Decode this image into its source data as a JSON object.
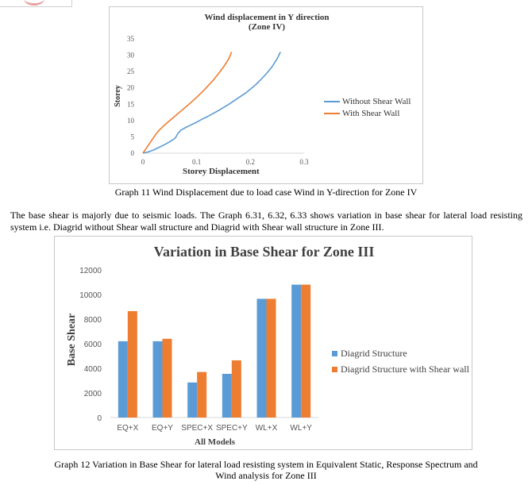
{
  "doc": {
    "caption1": "Graph 11 Wind Displacement due to load case Wind in Y-direction for Zone IV",
    "paragraph": "The base shear is majorly due to seismic loads. The Graph 6.31, 6.32, 6.33 shows variation in base shear for lateral load resisting system i.e. Diagrid without Shear wall structure and Diagrid with Shear wall structure in Zone III.",
    "caption2_line1": "Graph 12 Variation in Base Shear for lateral load resisting system in Equivalent Static, Response Spectrum and",
    "caption2_line2": "Wind analysis for Zone III"
  },
  "colors": {
    "blue": "#5b9bd5",
    "orange": "#ed7d31"
  },
  "chart_data": [
    {
      "type": "line",
      "title": "Wind displacement in Y direction",
      "subtitle": "(Zone IV)",
      "xlabel": "Storey Displacement",
      "ylabel": "Storey",
      "xlim": [
        0,
        0.3
      ],
      "ylim": [
        0,
        35
      ],
      "x_ticks": [
        0,
        0.1,
        0.2,
        0.3
      ],
      "x_tick_labels": [
        "0",
        "0.1",
        "0.2",
        "0.3"
      ],
      "y_ticks": [
        0,
        5,
        10,
        15,
        20,
        25,
        30,
        35
      ],
      "y_tick_labels": [
        "0",
        "5",
        "10",
        "15",
        "20",
        "25",
        "30",
        "35"
      ],
      "grid": false,
      "legend": "right",
      "series": [
        {
          "name": "Without Shear Wall",
          "color": "#5b9bd5",
          "x": [
            0,
            0.01,
            0.02,
            0.03,
            0.04,
            0.05,
            0.06,
            0.065,
            0.07,
            0.08,
            0.09,
            0.1,
            0.11,
            0.12,
            0.13,
            0.14,
            0.15,
            0.16,
            0.17,
            0.18,
            0.19,
            0.2,
            0.21,
            0.22,
            0.23,
            0.24,
            0.25,
            0.256
          ],
          "y": [
            0,
            0.4,
            1,
            1.8,
            2.6,
            3.5,
            4.6,
            6,
            7,
            7.9,
            8.7,
            9.5,
            10.4,
            11.2,
            12.1,
            13,
            14,
            15,
            16.1,
            17.2,
            18.3,
            19.6,
            21,
            22.6,
            24.4,
            26.4,
            29,
            31
          ]
        },
        {
          "name": "With Shear Wall",
          "color": "#ed7d31",
          "x": [
            0,
            0.005,
            0.01,
            0.015,
            0.02,
            0.025,
            0.03,
            0.04,
            0.05,
            0.06,
            0.07,
            0.08,
            0.09,
            0.1,
            0.11,
            0.12,
            0.13,
            0.14,
            0.15,
            0.16,
            0.165
          ],
          "y": [
            0,
            1.2,
            2.4,
            3.6,
            4.8,
            6,
            7,
            8.6,
            10,
            11.4,
            12.8,
            14.2,
            15.6,
            17.1,
            18.7,
            20.4,
            22.2,
            24.2,
            26.4,
            29,
            31
          ]
        }
      ]
    },
    {
      "type": "bar",
      "title": "Variation  in Base Shear for Zone III",
      "xlabel": "All Models",
      "ylabel": "Base Shear",
      "categories": [
        "EQ+X",
        "EQ+Y",
        "SPEC+X",
        "SPEC+Y",
        "WL+X",
        "WL+Y"
      ],
      "ylim": [
        0,
        12000
      ],
      "y_ticks": [
        0,
        2000,
        4000,
        6000,
        8000,
        10000,
        12000
      ],
      "y_tick_labels": [
        "0",
        "2000",
        "4000",
        "6000",
        "8000",
        "10000",
        "12000"
      ],
      "grid": false,
      "legend": "right",
      "series": [
        {
          "name": "Diagrid Structure",
          "color": "#5b9bd5",
          "values": [
            6200,
            6200,
            2850,
            3550,
            9650,
            10800
          ]
        },
        {
          "name": "Diagrid Structure with Shear wall",
          "color": "#ed7d31",
          "values": [
            8650,
            6400,
            3700,
            4650,
            9650,
            10800
          ]
        }
      ]
    }
  ]
}
